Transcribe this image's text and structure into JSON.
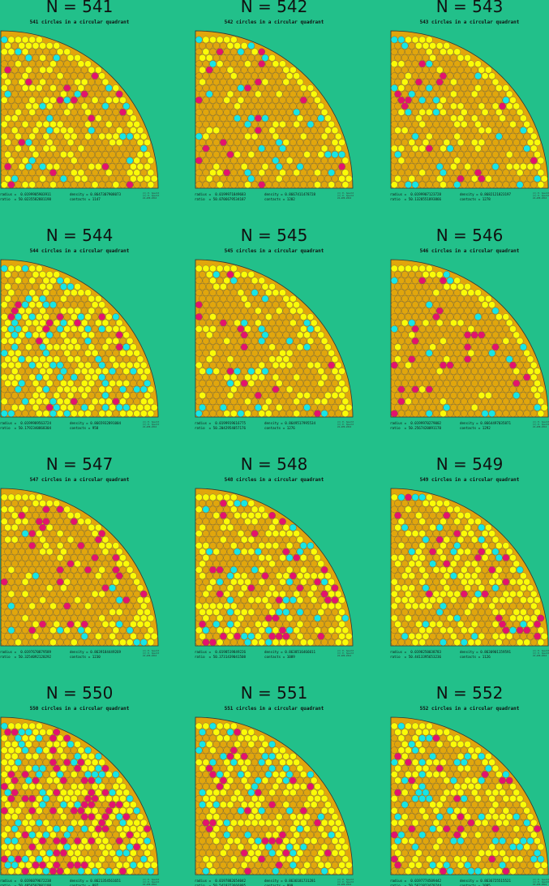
{
  "colors": {
    "background": "#22c08a",
    "dark_fill": "#e1a60c",
    "yellow_fill": "#fbfb07",
    "cyan_fill": "#17e6e6",
    "magenta_fill": "#e5126d",
    "outline": "#555555"
  },
  "panels": [
    {
      "title": "N = 541",
      "subtitle": "541 circles in a circular quadrant",
      "radius": "radius =  0.0199905903911",
      "ratio": "ratio  = 50.0235582881198",
      "density": "density = 0.8647307908073",
      "contacts": "contacts = 1147",
      "mix": [
        0.62,
        0.3,
        0.04,
        0.04
      ]
    },
    {
      "title": "N = 542",
      "subtitle": "542 circles in a circular quadrant",
      "radius": "radius =  0.0199971849683",
      "ratio": "ratio  = 50.0706679534187",
      "density": "density = 0.8667411478728",
      "contacts": "contacts = 1282",
      "mix": [
        0.78,
        0.12,
        0.05,
        0.05
      ]
    },
    {
      "title": "N = 543",
      "subtitle": "543 circles in a circular quadrant",
      "radius": "radius =  0.0199907123728",
      "ratio": "ratio  = 50.1328551893866",
      "density": "density = 0.8682121823197",
      "contacts": "contacts = 1278",
      "mix": [
        0.7,
        0.18,
        0.07,
        0.05
      ]
    },
    {
      "title": "N = 544",
      "subtitle": "544 circles in a circular quadrant",
      "radius": "radius =  0.0199989563724",
      "ratio": "ratio  = 50.1792340868304",
      "density": "density = 0.8665932891004",
      "contacts": "contacts = 958",
      "mix": [
        0.38,
        0.42,
        0.15,
        0.05
      ]
    },
    {
      "title": "N = 545",
      "subtitle": "545 circles in a circular quadrant",
      "radius": "radius =  0.0199919616775",
      "ratio": "ratio  = 50.2042954057176",
      "density": "density = 0.8649517995534",
      "contacts": "contacts = 1276",
      "mix": [
        0.68,
        0.2,
        0.06,
        0.06
      ]
    },
    {
      "title": "N = 546",
      "subtitle": "546 circles in a circular quadrant",
      "radius": "radius =  0.0199970279002",
      "ratio": "ratio  = 50.2567420091170",
      "density": "density = 0.8664497035871",
      "contacts": "contacts = 1292",
      "mix": [
        0.8,
        0.1,
        0.05,
        0.05
      ]
    },
    {
      "title": "N = 547",
      "subtitle": "547 circles in a circular quadrant",
      "radius": "radius =  0.0197670879589",
      "ratio": "ratio  = 50.3254092120292",
      "density": "density = 0.8639184449269",
      "contacts": "contacts = 1230",
      "mix": [
        0.72,
        0.18,
        0.03,
        0.07
      ]
    },
    {
      "title": "N = 548",
      "subtitle": "548 circles in a circular quadrant",
      "radius": "radius =  0.0198519849226",
      "ratio": "ratio  = 50.3731439041508",
      "density": "density = 0.8638516466011",
      "contacts": "contacts = 1089",
      "mix": [
        0.55,
        0.28,
        0.09,
        0.08
      ]
    },
    {
      "title": "N = 549",
      "subtitle": "549 circles in a circular quadrant",
      "radius": "radius =  0.0198250038783",
      "ratio": "ratio  = 50.4413395653236",
      "density": "density = 0.8630901159591",
      "contacts": "contacts = 1126",
      "mix": [
        0.5,
        0.38,
        0.07,
        0.05
      ]
    },
    {
      "title": "N = 550",
      "subtitle": "550 circles in a circular quadrant",
      "radius": "radius =  0.0196079672238",
      "ratio": "ratio  = 50.4856597981198",
      "density": "density = 0.8621354561651",
      "contacts": "contacts = 897",
      "mix": [
        0.3,
        0.38,
        0.17,
        0.15
      ]
    },
    {
      "title": "N = 551",
      "subtitle": "551 circles in a circular quadrant",
      "radius": "radius =  0.0197882654042",
      "ratio": "ratio  = 50.5419323666895",
      "density": "density = 0.8636181731281",
      "contacts": "contacts = 999",
      "mix": [
        0.45,
        0.36,
        0.11,
        0.08
      ]
    },
    {
      "title": "N = 552",
      "subtitle": "552 circles in a circular quadrant",
      "radius": "radius =  0.0197774509442",
      "ratio": "ratio  = 50.5621823478744",
      "density": "density = 0.8636725515521",
      "contacts": "contacts = 1095",
      "mix": [
        0.55,
        0.28,
        0.1,
        0.07
      ]
    }
  ],
  "credit": [
    "(C) E. Specht",
    "(C) E. Specht",
    "24-APR-2016"
  ]
}
